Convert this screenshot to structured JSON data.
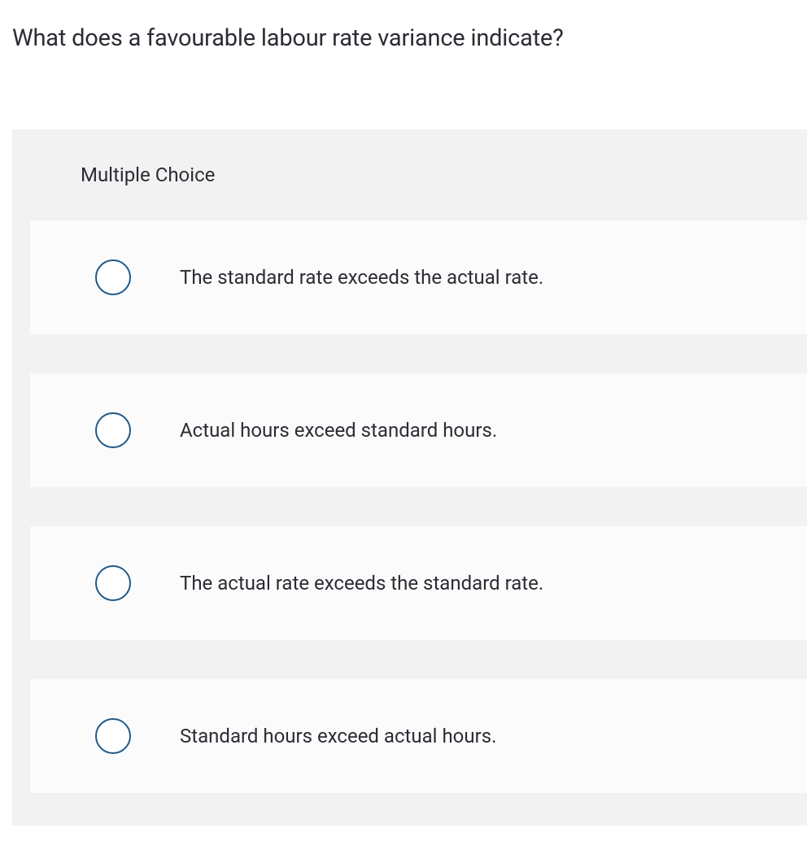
{
  "question": {
    "text": "What does a favourable labour rate variance indicate?",
    "text_color": "#2a2d34",
    "fontsize": 29
  },
  "panel": {
    "header": "Multiple Choice",
    "header_fontsize": 24,
    "background_color": "#f2f2f2",
    "card_background_color": "#fbfbfb"
  },
  "radio": {
    "border_color": "#1f5a8a",
    "fill_color": "#ffffff",
    "size": 44
  },
  "options": [
    {
      "label": "The standard rate exceeds the actual rate.",
      "selected": false
    },
    {
      "label": "Actual hours exceed standard hours.",
      "selected": false
    },
    {
      "label": "The actual rate exceeds the standard rate.",
      "selected": false
    },
    {
      "label": "Standard hours exceed actual hours.",
      "selected": false
    }
  ]
}
